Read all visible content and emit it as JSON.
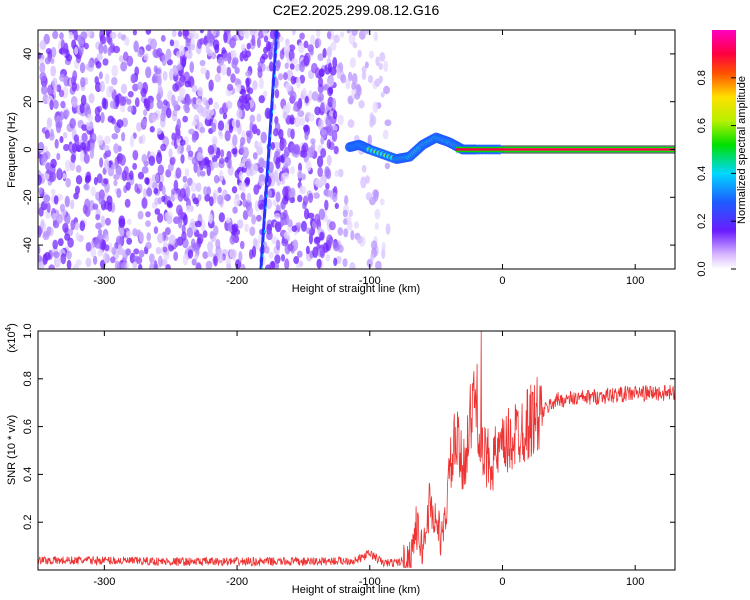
{
  "title": "C2E2.2025.299.08.12.G16",
  "chart_data": [
    {
      "type": "heatmap",
      "title": "C2E2.2025.299.08.12.G16",
      "xlabel": "Height of straight line (km)",
      "ylabel": "Frequency (Hz)",
      "xlim": [
        -350,
        130
      ],
      "ylim": [
        -50,
        50
      ],
      "xticks": [
        "-300",
        "-200",
        "-100",
        "0",
        "100"
      ],
      "yticks": [
        "-40",
        "-20",
        "0",
        "20",
        "40"
      ],
      "features": {
        "noise_region_x": [
          -350,
          -85
        ],
        "diagonal_track": [
          [
            -182,
            -50
          ],
          [
            -170,
            50
          ]
        ],
        "signal_track": [
          [
            -115,
            1
          ],
          [
            -108,
            2
          ],
          [
            -100,
            0
          ],
          [
            -80,
            -4
          ],
          [
            -70,
            -3
          ],
          [
            -60,
            2
          ],
          [
            -50,
            5
          ],
          [
            -40,
            3
          ],
          [
            -30,
            0
          ],
          [
            -20,
            0
          ],
          [
            0,
            0
          ],
          [
            130,
            0
          ]
        ]
      },
      "colorbar": {
        "label": "Normalized spectral amplitude",
        "range": [
          0,
          1
        ],
        "ticks": [
          "0.0",
          "0.2",
          "0.4",
          "0.6",
          "0.8"
        ]
      }
    },
    {
      "type": "line",
      "xlabel": "Height of straight line (km)",
      "ylabel": "SNR (10 * v/v)",
      "scale_label": "(x10",
      "scale_exp": "4",
      "scale_close": ")",
      "xlim": [
        -350,
        130
      ],
      "ylim": [
        0,
        1.0
      ],
      "xticks": [
        "-300",
        "-200",
        "-100",
        "0",
        "100"
      ],
      "yticks": [
        "0.2",
        "0.4",
        "0.6",
        "0.8",
        "1.0"
      ],
      "color": "#ee3333",
      "x": [
        -350,
        -300,
        -250,
        -200,
        -150,
        -110,
        -100,
        -90,
        -80,
        -70,
        -65,
        -60,
        -55,
        -50,
        -45,
        -40,
        -35,
        -30,
        -25,
        -20,
        -15,
        -10,
        -5,
        0,
        10,
        20,
        30,
        40,
        60,
        80,
        100,
        130
      ],
      "y": [
        0.04,
        0.04,
        0.035,
        0.035,
        0.035,
        0.04,
        0.07,
        0.03,
        0.03,
        0.05,
        0.18,
        0.08,
        0.28,
        0.2,
        0.12,
        0.4,
        0.55,
        0.42,
        0.6,
        0.74,
        0.46,
        0.47,
        0.47,
        0.5,
        0.57,
        0.62,
        0.66,
        0.71,
        0.72,
        0.73,
        0.74,
        0.74
      ]
    }
  ]
}
